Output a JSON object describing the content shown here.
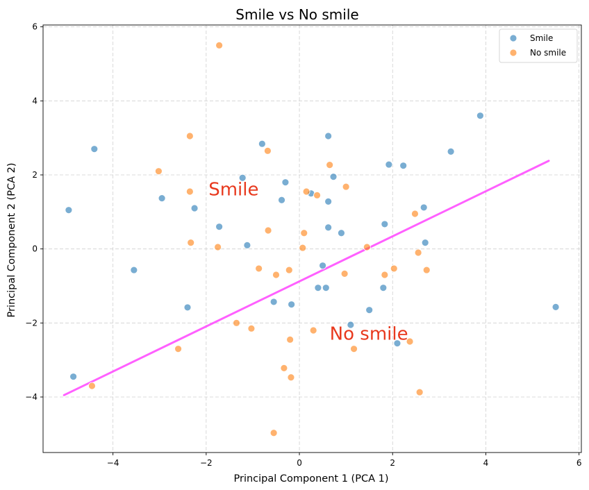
{
  "chart_data": {
    "type": "scatter",
    "title": "Smile vs No smile",
    "xlabel": "Principal Component 1 (PCA 1)",
    "ylabel": "Principal Component 2 (PCA 2)",
    "xlim": [
      -5.5,
      6.05
    ],
    "ylim": [
      -5.5,
      6.05
    ],
    "xticks": [
      -4,
      -2,
      0,
      2,
      4,
      6
    ],
    "yticks": [
      -4,
      -2,
      0,
      2,
      4,
      6
    ],
    "xtick_labels": [
      "−4",
      "−2",
      "0",
      "2",
      "4",
      "6"
    ],
    "ytick_labels": [
      "−4",
      "−2",
      "0",
      "2",
      "4",
      "6"
    ],
    "grid": true,
    "legend_position": "top-right",
    "series": [
      {
        "name": "Smile",
        "color": "#1f77b4",
        "points": [
          [
            -4.95,
            1.05
          ],
          [
            -4.4,
            2.7
          ],
          [
            -4.85,
            -3.45
          ],
          [
            -3.55,
            -0.57
          ],
          [
            -2.95,
            1.37
          ],
          [
            -2.4,
            -1.58
          ],
          [
            -2.25,
            1.1
          ],
          [
            -1.72,
            0.6
          ],
          [
            -1.22,
            1.92
          ],
          [
            -1.12,
            0.1
          ],
          [
            -0.8,
            2.84
          ],
          [
            -0.3,
            1.8
          ],
          [
            -0.38,
            1.32
          ],
          [
            -0.55,
            -1.43
          ],
          [
            -0.17,
            -1.5
          ],
          [
            0.25,
            1.5
          ],
          [
            0.62,
            3.05
          ],
          [
            0.73,
            1.95
          ],
          [
            0.62,
            1.28
          ],
          [
            0.62,
            0.58
          ],
          [
            0.9,
            0.43
          ],
          [
            0.5,
            -0.45
          ],
          [
            0.4,
            -1.05
          ],
          [
            0.57,
            -1.05
          ],
          [
            1.1,
            -2.05
          ],
          [
            1.5,
            -1.65
          ],
          [
            1.8,
            -1.05
          ],
          [
            1.83,
            0.67
          ],
          [
            1.92,
            2.28
          ],
          [
            2.23,
            2.25
          ],
          [
            2.1,
            -2.55
          ],
          [
            2.67,
            1.12
          ],
          [
            2.7,
            0.17
          ],
          [
            3.25,
            2.63
          ],
          [
            3.88,
            3.6
          ],
          [
            5.5,
            -1.57
          ]
        ]
      },
      {
        "name": "No smile",
        "color": "#ff7f0e",
        "points": [
          [
            -1.72,
            5.5
          ],
          [
            -2.35,
            3.05
          ],
          [
            -3.02,
            2.1
          ],
          [
            -2.35,
            1.55
          ],
          [
            -2.33,
            0.17
          ],
          [
            -1.75,
            0.05
          ],
          [
            -0.68,
            2.65
          ],
          [
            -0.67,
            0.5
          ],
          [
            -0.87,
            -0.53
          ],
          [
            -0.5,
            -0.7
          ],
          [
            -0.22,
            -0.57
          ],
          [
            -1.35,
            -2.0
          ],
          [
            -1.03,
            -2.15
          ],
          [
            -2.6,
            -2.7
          ],
          [
            -4.45,
            -3.7
          ],
          [
            -0.2,
            -2.45
          ],
          [
            -0.33,
            -3.22
          ],
          [
            -0.18,
            -3.47
          ],
          [
            -0.55,
            -4.97
          ],
          [
            0.07,
            0.03
          ],
          [
            0.1,
            0.43
          ],
          [
            0.15,
            1.55
          ],
          [
            0.38,
            1.45
          ],
          [
            0.65,
            2.27
          ],
          [
            1.0,
            1.68
          ],
          [
            0.3,
            -2.2
          ],
          [
            0.97,
            -0.67
          ],
          [
            1.17,
            -2.7
          ],
          [
            1.45,
            0.05
          ],
          [
            1.83,
            -0.7
          ],
          [
            2.03,
            -0.53
          ],
          [
            2.37,
            -2.5
          ],
          [
            2.48,
            0.95
          ],
          [
            2.55,
            -0.1
          ],
          [
            2.73,
            -0.57
          ],
          [
            2.58,
            -3.87
          ]
        ]
      }
    ],
    "fit_line": {
      "color": "#ff44ff",
      "from": [
        -5.05,
        -3.95
      ],
      "to": [
        5.35,
        2.38
      ]
    },
    "annotations": [
      {
        "text": "Smile",
        "x": -1.95,
        "y": 1.45,
        "color": "#e8391e"
      },
      {
        "text": "No smile",
        "x": 0.65,
        "y": -2.45,
        "color": "#e8391e"
      }
    ]
  }
}
